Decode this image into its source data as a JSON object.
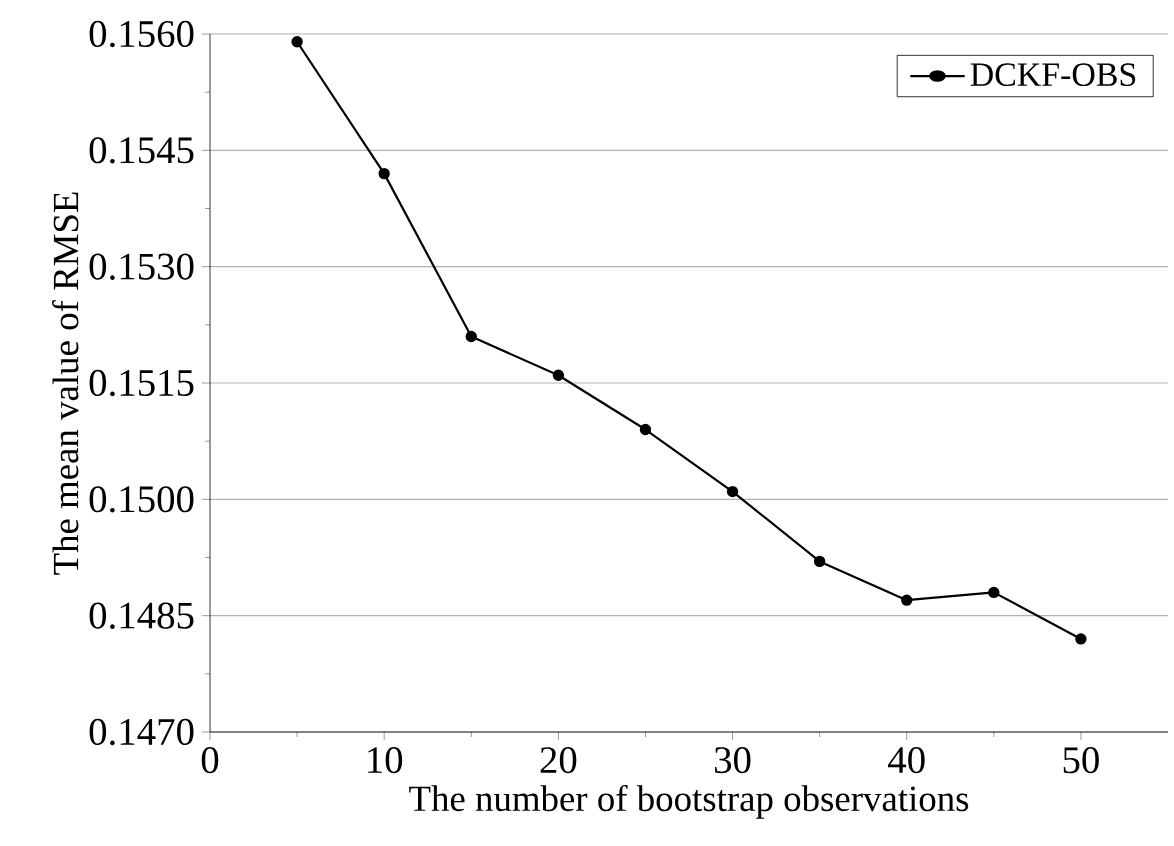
{
  "chart_data": {
    "type": "line",
    "xlabel": "The number of bootstrap observations",
    "ylabel": "The mean value of RMSE",
    "x": [
      5,
      10,
      15,
      20,
      25,
      30,
      35,
      40,
      45,
      50
    ],
    "series": [
      {
        "name": "DCKF-OBS",
        "color": "#000000",
        "values": [
          0.1559,
          0.1542,
          0.1521,
          0.1516,
          0.1509,
          0.1501,
          0.1492,
          0.1487,
          0.1488,
          0.1482
        ]
      }
    ],
    "xlim": [
      0,
      55
    ],
    "xticks": [
      0,
      10,
      20,
      30,
      40,
      50
    ],
    "ylim": [
      0.147,
      0.156
    ],
    "yticks": [
      {
        "value": 0.147,
        "label": "0.1470"
      },
      {
        "value": 0.1485,
        "label": "0.1485"
      },
      {
        "value": 0.15,
        "label": "0.1500"
      },
      {
        "value": 0.1515,
        "label": "0.1515"
      },
      {
        "value": 0.153,
        "label": "0.1530"
      },
      {
        "value": 0.1545,
        "label": "0.1545"
      },
      {
        "value": 0.156,
        "label": "0.1560"
      }
    ],
    "grid": "y",
    "legend": "top right",
    "marker": "circle",
    "line_style": "solid"
  }
}
